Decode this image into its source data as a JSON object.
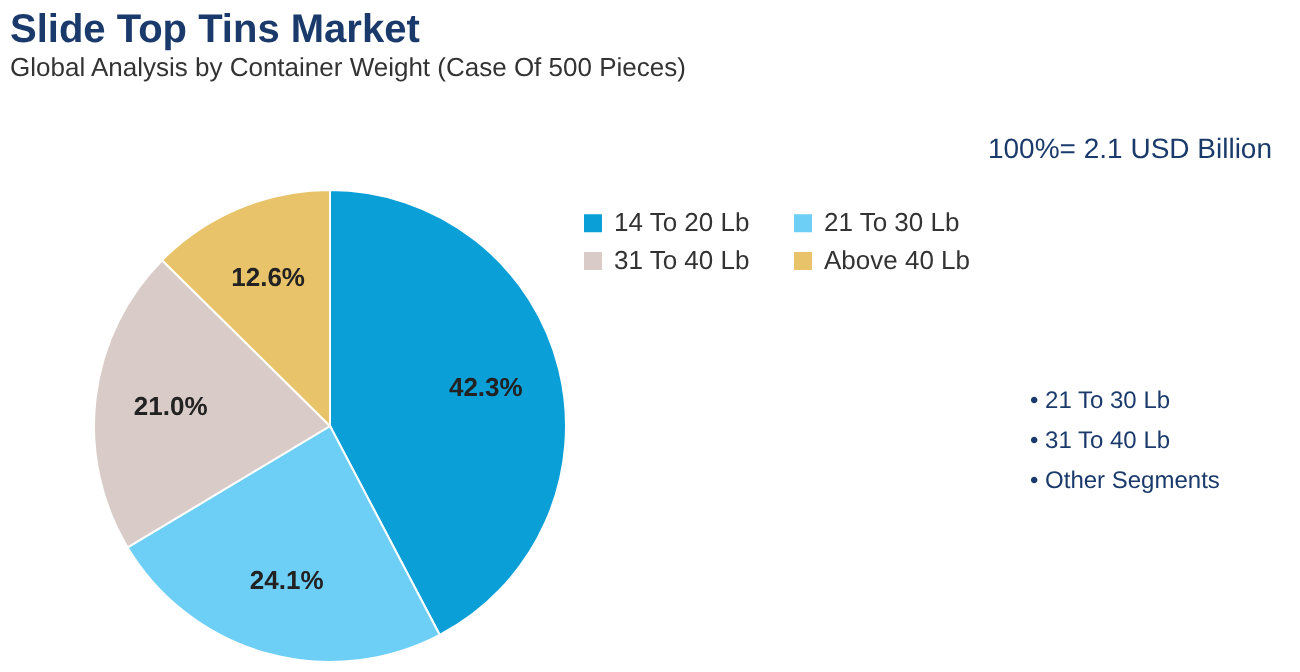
{
  "chart_data": {
    "type": "pie",
    "title": "Slide Top Tins Market",
    "subtitle": "Global Analysis by Container Weight (Case Of 500 Pieces)",
    "categories": [
      "14 To 20 Lb",
      "21 To 30 Lb",
      "31 To 40 Lb",
      "Above 40 Lb"
    ],
    "values": [
      42.3,
      24.1,
      21.0,
      12.6
    ],
    "colors": [
      "#0b9fd8",
      "#6dcff6",
      "#d9cbc8",
      "#e8c36a"
    ],
    "value_labels": [
      "42.3%",
      "24.1%",
      "21.0%",
      "12.6%"
    ],
    "legend": "right",
    "annotations": [
      "100%= 2.1 USD Billion",
      "• 21 To 30 Lb",
      "• 31 To 40 Lb",
      "• Other Segments"
    ]
  }
}
